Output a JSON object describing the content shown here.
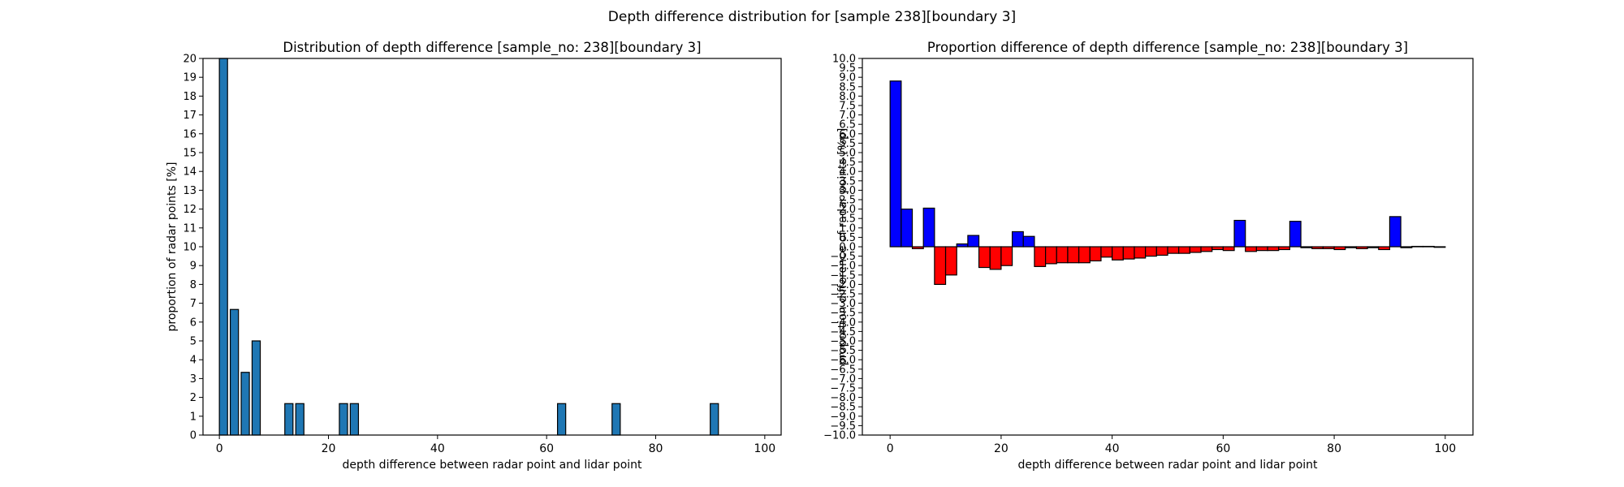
{
  "suptitle": "Depth difference distribution for [sample 238][boundary 3]",
  "chart_data": [
    {
      "type": "bar",
      "title": "Distribution of depth difference [sample_no: 238][boundary 3]",
      "xlabel": "depth difference between radar point and lidar point",
      "ylabel": "proportion of radar points [%]",
      "xlim": [
        -3,
        103
      ],
      "ylim": [
        0,
        20
      ],
      "bin_width": 1.5,
      "x_ticks": [
        0,
        20,
        40,
        60,
        80,
        100
      ],
      "y_ticks": [
        0,
        1,
        2,
        3,
        4,
        5,
        6,
        7,
        8,
        9,
        10,
        11,
        12,
        13,
        14,
        15,
        16,
        17,
        18,
        19,
        20
      ],
      "bar_color": "#1f77b4",
      "bins": [
        {
          "x": 0,
          "value": 20
        },
        {
          "x": 2,
          "value": 6.67
        },
        {
          "x": 4,
          "value": 3.33
        },
        {
          "x": 6,
          "value": 5.0
        },
        {
          "x": 12,
          "value": 1.67
        },
        {
          "x": 14,
          "value": 1.67
        },
        {
          "x": 22,
          "value": 1.67
        },
        {
          "x": 24,
          "value": 1.67
        },
        {
          "x": 62,
          "value": 1.67
        },
        {
          "x": 72,
          "value": 1.67
        },
        {
          "x": 90,
          "value": 1.67
        }
      ]
    },
    {
      "type": "bar",
      "title": "Proportion difference of depth difference [sample_no: 238][boundary 3]",
      "xlabel": "depth difference between radar point and lidar point",
      "ylabel": "proportion difference of radar points [%p]",
      "xlim": [
        -5,
        105
      ],
      "ylim": [
        -10,
        10
      ],
      "bin_width": 2,
      "x_ticks": [
        0,
        20,
        40,
        60,
        80,
        100
      ],
      "y_tick_step": 0.5,
      "positive_color": "#0000ff",
      "negative_color": "#ff0000",
      "bins": [
        {
          "x": 0,
          "value": 8.8
        },
        {
          "x": 2,
          "value": 2.0
        },
        {
          "x": 4,
          "value": -0.1
        },
        {
          "x": 6,
          "value": 2.05
        },
        {
          "x": 8,
          "value": -2.0
        },
        {
          "x": 10,
          "value": -1.5
        },
        {
          "x": 12,
          "value": 0.15
        },
        {
          "x": 14,
          "value": 0.6
        },
        {
          "x": 16,
          "value": -1.1
        },
        {
          "x": 18,
          "value": -1.2
        },
        {
          "x": 20,
          "value": -1.0
        },
        {
          "x": 22,
          "value": 0.8
        },
        {
          "x": 24,
          "value": 0.55
        },
        {
          "x": 26,
          "value": -1.05
        },
        {
          "x": 28,
          "value": -0.9
        },
        {
          "x": 30,
          "value": -0.85
        },
        {
          "x": 32,
          "value": -0.85
        },
        {
          "x": 34,
          "value": -0.85
        },
        {
          "x": 36,
          "value": -0.75
        },
        {
          "x": 38,
          "value": -0.55
        },
        {
          "x": 40,
          "value": -0.7
        },
        {
          "x": 42,
          "value": -0.65
        },
        {
          "x": 44,
          "value": -0.6
        },
        {
          "x": 46,
          "value": -0.5
        },
        {
          "x": 48,
          "value": -0.45
        },
        {
          "x": 50,
          "value": -0.35
        },
        {
          "x": 52,
          "value": -0.35
        },
        {
          "x": 54,
          "value": -0.3
        },
        {
          "x": 56,
          "value": -0.25
        },
        {
          "x": 58,
          "value": -0.15
        },
        {
          "x": 60,
          "value": -0.2
        },
        {
          "x": 62,
          "value": 1.4
        },
        {
          "x": 64,
          "value": -0.25
        },
        {
          "x": 66,
          "value": -0.2
        },
        {
          "x": 68,
          "value": -0.2
        },
        {
          "x": 70,
          "value": -0.15
        },
        {
          "x": 72,
          "value": 1.35
        },
        {
          "x": 74,
          "value": -0.05
        },
        {
          "x": 76,
          "value": -0.1
        },
        {
          "x": 78,
          "value": -0.1
        },
        {
          "x": 80,
          "value": -0.15
        },
        {
          "x": 82,
          "value": -0.05
        },
        {
          "x": 84,
          "value": -0.1
        },
        {
          "x": 86,
          "value": -0.05
        },
        {
          "x": 88,
          "value": -0.15
        },
        {
          "x": 90,
          "value": 1.6
        },
        {
          "x": 92,
          "value": -0.05
        },
        {
          "x": 94,
          "value": 0.02
        },
        {
          "x": 96,
          "value": 0.02
        },
        {
          "x": 98,
          "value": -0.03
        }
      ]
    }
  ]
}
